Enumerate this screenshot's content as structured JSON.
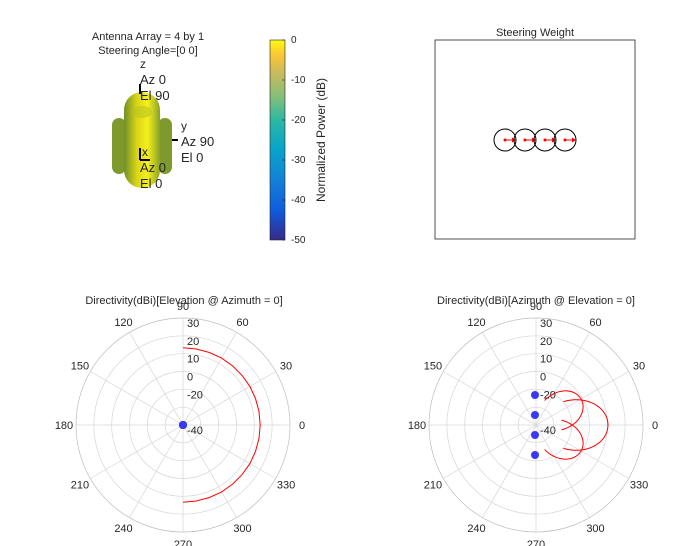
{
  "colors": {
    "trace": "#ff0000",
    "element_marker": "#3a3af5",
    "weight_marker": "#ff0000",
    "grid": "#d6d6d6",
    "axis_text": "#262626"
  },
  "chart_data": [
    {
      "type": "surface3d",
      "title": [
        "Antenna Array = 4 by 1",
        "Steering Angle=[0 0]"
      ],
      "axes_labels": {
        "z": [
          "z",
          "Az 0",
          "El 90"
        ],
        "y": [
          "y",
          "Az 90",
          "El 0"
        ],
        "x": [
          "x",
          "Az 0",
          "El 0"
        ]
      },
      "colorbar": {
        "label": "Normalized Power (dB)",
        "range": [
          -50,
          0
        ],
        "ticks": [
          "0",
          "-10",
          "-20",
          "-30",
          "-40",
          "-50"
        ],
        "colormap": "parula"
      }
    },
    {
      "type": "scatter",
      "title": "Steering Weight",
      "element_positions": [
        -1.5,
        -0.5,
        0.5,
        1.5
      ],
      "weight_real": [
        1,
        1,
        1,
        1
      ],
      "weight_imag": [
        0,
        0,
        0,
        0
      ],
      "grid": false
    },
    {
      "type": "polar",
      "title": "Directivity(dBi)[Elevation @ Azimuth = 0]",
      "angle_ticks": [
        "0",
        "30",
        "60",
        "90",
        "120",
        "150",
        "180",
        "210",
        "240",
        "270",
        "300",
        "330"
      ],
      "r_ticks": [
        "30",
        "20",
        "10",
        "0",
        "-20",
        "-40"
      ],
      "r_tick_values": [
        30,
        20,
        10,
        0,
        -20,
        -40
      ],
      "theta_deg": [
        -90,
        -80,
        -70,
        -60,
        -50,
        -40,
        -30,
        -20,
        -10,
        0,
        10,
        20,
        30,
        40,
        50,
        60,
        70,
        80,
        90
      ],
      "directivity_dBi": [
        10.5,
        10.5,
        10.5,
        10.5,
        10.5,
        10.5,
        10.5,
        10.5,
        10.5,
        10.5,
        10.5,
        10.5,
        10.5,
        10.5,
        10.5,
        10.5,
        10.5,
        10.5,
        10.5
      ],
      "element_marker_angle_deg": [
        0,
        0,
        0,
        0
      ]
    },
    {
      "type": "polar",
      "title": "Directivity(dBi)[Azimuth @ Elevation = 0]",
      "angle_ticks": [
        "0",
        "30",
        "60",
        "90",
        "120",
        "150",
        "180",
        "210",
        "240",
        "270",
        "300",
        "330"
      ],
      "r_ticks": [
        "30",
        "20",
        "10",
        "0",
        "-20",
        "-40"
      ],
      "r_tick_values": [
        30,
        20,
        10,
        0,
        -20,
        -40
      ],
      "lobe_peak_deg": [
        -30,
        0,
        30
      ],
      "element_marker_y": [
        -1.5,
        -0.5,
        0.5,
        1.5
      ]
    }
  ]
}
